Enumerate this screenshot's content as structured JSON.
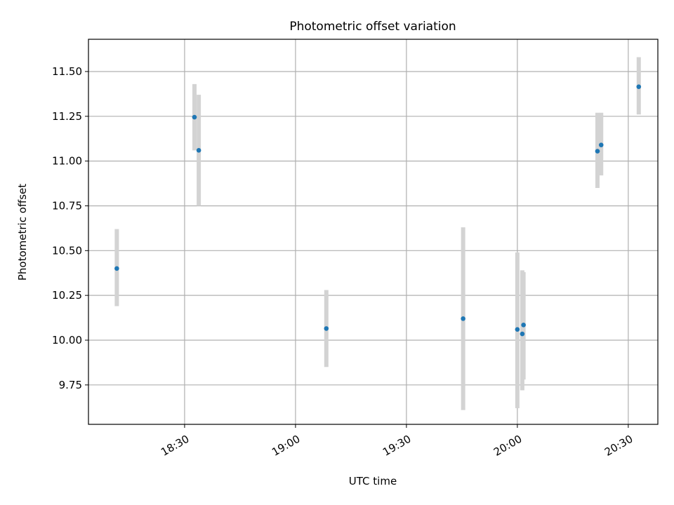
{
  "chart_data": {
    "type": "scatter",
    "title": "Photometric offset variation",
    "xlabel": "UTC time",
    "ylabel": "Photometric offset",
    "xlim": [
      "18:04",
      "20:38"
    ],
    "ylim": [
      9.53,
      11.68
    ],
    "grid": true,
    "x_ticks": [
      "18:30",
      "19:00",
      "19:30",
      "20:00",
      "20:30"
    ],
    "y_ticks": [
      "9.75",
      "10.00",
      "10.25",
      "10.50",
      "10.75",
      "11.00",
      "11.25",
      "11.50"
    ],
    "points": [
      {
        "x": "18:11:40",
        "y": 10.4,
        "err_low": 10.19,
        "err_high": 10.62
      },
      {
        "x": "18:32:40",
        "y": 11.245,
        "err_low": 11.06,
        "err_high": 11.43
      },
      {
        "x": "18:33:50",
        "y": 11.06,
        "err_low": 10.75,
        "err_high": 11.37
      },
      {
        "x": "19:08:20",
        "y": 10.065,
        "err_low": 9.85,
        "err_high": 10.28
      },
      {
        "x": "19:45:20",
        "y": 10.12,
        "err_low": 9.61,
        "err_high": 10.63
      },
      {
        "x": "20:00:00",
        "y": 10.06,
        "err_low": 9.62,
        "err_high": 10.49
      },
      {
        "x": "20:01:20",
        "y": 10.035,
        "err_low": 9.72,
        "err_high": 10.39
      },
      {
        "x": "20:01:40",
        "y": 10.085,
        "err_low": 9.78,
        "err_high": 10.38
      },
      {
        "x": "20:21:40",
        "y": 11.055,
        "err_low": 10.85,
        "err_high": 11.27
      },
      {
        "x": "20:22:40",
        "y": 11.09,
        "err_low": 10.92,
        "err_high": 11.27
      },
      {
        "x": "20:32:50",
        "y": 11.415,
        "err_low": 11.26,
        "err_high": 11.58
      }
    ],
    "colors": {
      "point": "#1f77b4",
      "errorbar": "#d3d3d3",
      "grid": "#b0b0b0",
      "axis": "#000000"
    }
  }
}
